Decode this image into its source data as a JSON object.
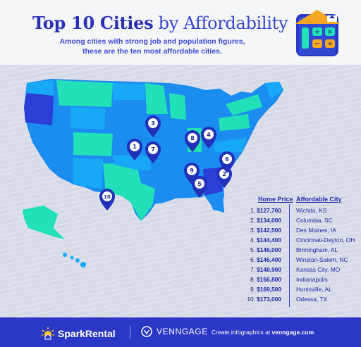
{
  "header": {
    "title_highlight": "Top 10 Cities",
    "title_rest": " by Affordability",
    "subtitle_line1": "Among cities with strong job and population figures,",
    "subtitle_line2": "these are the ten most affordable cities."
  },
  "table": {
    "col_price": "Home Price",
    "col_city": "Affordable City",
    "rows": [
      {
        "num": "1.",
        "price": "$127,700",
        "city": "Wichita, KS"
      },
      {
        "num": "2.",
        "price": "$134,000",
        "city": "Columbia, SC"
      },
      {
        "num": "3.",
        "price": "$142,500",
        "city": "Des Moines, IA"
      },
      {
        "num": "4.",
        "price": "$144,400",
        "city": "Cincinnati-Dayton, OH"
      },
      {
        "num": "5.",
        "price": "$146,000",
        "city": "Birmingham, AL"
      },
      {
        "num": "6.",
        "price": "$146,400",
        "city": "Winston-Salem, NC"
      },
      {
        "num": "7.",
        "price": "$148,900",
        "city": "Kansas City, MO"
      },
      {
        "num": "8.",
        "price": "$166,800",
        "city": "Indianapolis"
      },
      {
        "num": "9.",
        "price": "$169,500",
        "city": "Huntsville, AL"
      },
      {
        "num": "10.",
        "price": "$173,000",
        "city": "Odessa, TX"
      }
    ]
  },
  "map": {
    "pins": [
      "1",
      "2",
      "3",
      "4",
      "5",
      "6",
      "7",
      "8",
      "9",
      "10"
    ],
    "colors": {
      "dark": "#2b3fd6",
      "mid": "#1b8cf0",
      "bright": "#17a9f5",
      "mint": "#22e0b8",
      "pin": "#2030b8"
    }
  },
  "footer": {
    "brand1": "SparkRental",
    "brand2": "VENNGAGE",
    "credit_prefix": "Create infographics at ",
    "credit_site": "venngage.com"
  },
  "icons": [
    "calculator-house-icon",
    "location-pin-icon",
    "spark-logo-icon",
    "venngage-logo-icon"
  ]
}
